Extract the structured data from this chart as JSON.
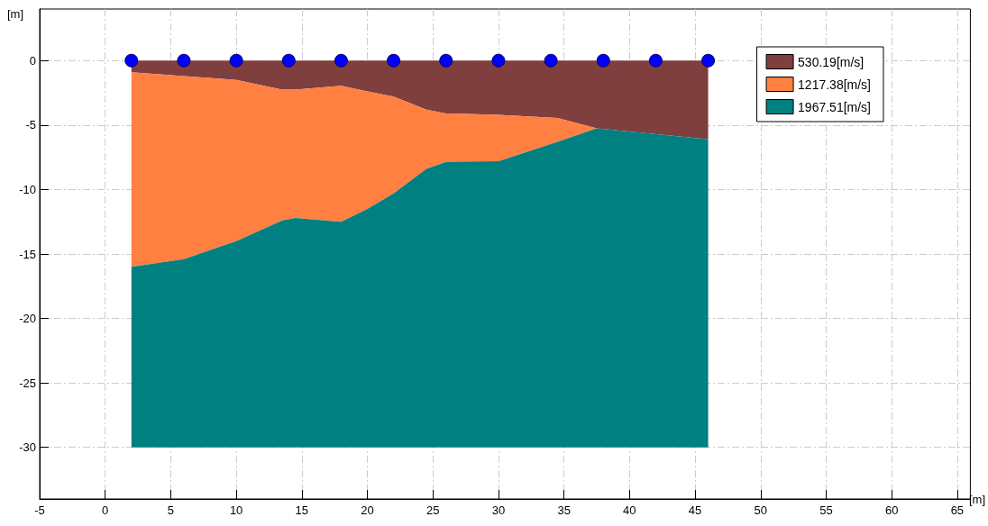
{
  "chart_data": {
    "type": "area",
    "stacked": true,
    "xlabel": "[m]",
    "ylabel": "[m]",
    "x": [
      2,
      6,
      10,
      13.5,
      14.5,
      18,
      20,
      22,
      24.5,
      26,
      30,
      34.5,
      37.5,
      41,
      45,
      46
    ],
    "series": [
      {
        "name": "530.19[m/s]",
        "color": "#7f3f3f",
        "values": [
          -0.9,
          -1.2,
          -1.5,
          -2.25,
          -2.25,
          -1.95,
          -2.4,
          -2.8,
          -3.8,
          -4.1,
          -4.2,
          -4.45,
          -5.25,
          -5.6,
          -6.0,
          -6.1
        ]
      },
      {
        "name": "1217.38[m/s]",
        "color": "#ff8040",
        "values": [
          -15.1,
          -14.2,
          -12.5,
          -10.15,
          -9.95,
          -10.55,
          -9.1,
          -7.5,
          -4.6,
          -3.75,
          -3.6,
          -1.85,
          0,
          0,
          0,
          0
        ]
      },
      {
        "name": "1967.51[m/s]",
        "color": "#008080",
        "values": [
          -14,
          -14.6,
          -16,
          -17.6,
          -17.8,
          -17.5,
          -18.5,
          -19.7,
          -21.6,
          -22.15,
          -22.2,
          -23.7,
          -24.75,
          -24.4,
          -24,
          -23.9
        ]
      },
      {
        "type": "scatter",
        "color": "#0000ff",
        "x": [
          2,
          6,
          10,
          14,
          18,
          22,
          26,
          30,
          34,
          38,
          42,
          46
        ],
        "values": [
          0,
          0,
          0,
          0,
          0,
          0,
          0,
          0,
          0,
          0,
          0,
          0
        ],
        "marker": "circle"
      }
    ],
    "xlim": [
      -5,
      66
    ],
    "xticks": [
      -5,
      0,
      5,
      10,
      15,
      20,
      25,
      30,
      35,
      40,
      45,
      50,
      55,
      60,
      65
    ],
    "ylim": [
      -34,
      4
    ],
    "yticks": [
      -30,
      -25,
      -20,
      -15,
      -10,
      -5,
      0
    ],
    "grid": true,
    "legend": "top right"
  }
}
